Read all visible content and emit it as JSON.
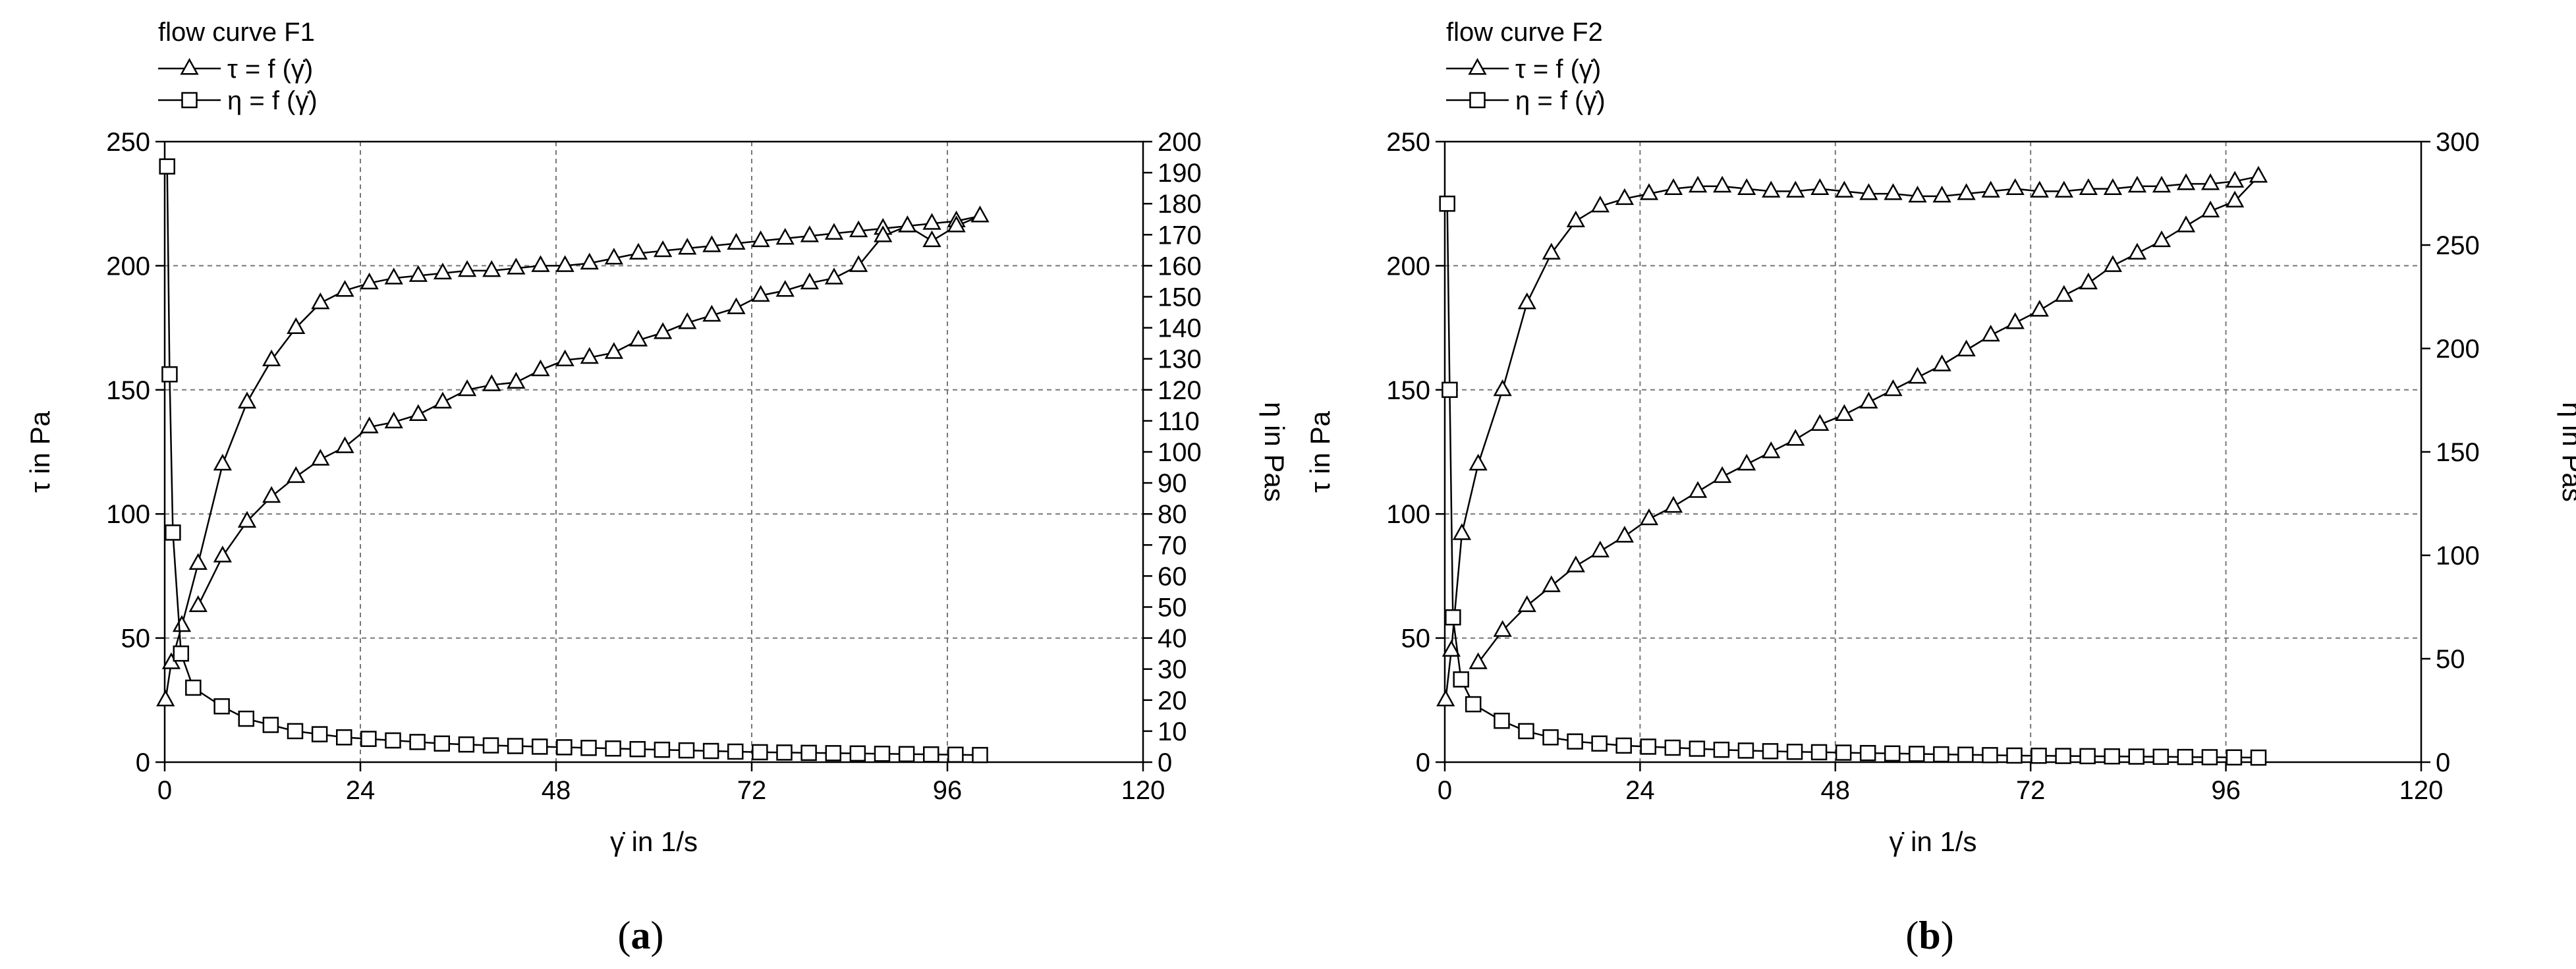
{
  "chart_data": [
    {
      "type": "line",
      "panel_label": "a",
      "title": "flow curve F1",
      "legend": [
        "τ = f (γ̇)",
        "η = f (γ̇)"
      ],
      "xlabel": "γ̇ in 1/s",
      "ylabel_left": "τ in Pa",
      "ylabel_right": "η in Pas",
      "xlim": [
        0,
        120
      ],
      "xticks": [
        0,
        24,
        48,
        72,
        96,
        120
      ],
      "ylim_left": [
        0,
        250
      ],
      "yticks_left": [
        0,
        50,
        100,
        150,
        200,
        250
      ],
      "ylim_right": [
        0,
        200
      ],
      "yticks_right": [
        0,
        10,
        20,
        30,
        40,
        50,
        60,
        70,
        80,
        90,
        100,
        110,
        120,
        130,
        140,
        150,
        160,
        170,
        180,
        190,
        200
      ],
      "grid": true,
      "series": [
        {
          "name": "τ = f (γ̇)",
          "marker": "triangle",
          "axis": "left",
          "x": [
            0.1,
            0.8,
            2.1,
            4.1,
            7.1,
            10.1,
            13.1,
            16.1,
            19.1,
            22.1,
            25.1,
            28.1,
            31.1,
            34.1,
            37.1,
            40.1,
            43.1,
            46.1,
            49.1,
            52.1,
            55.1,
            58.1,
            61.1,
            64.1,
            67.1,
            70.1,
            73.1,
            76.1,
            79.1,
            82.1,
            85.1,
            88.1,
            91.1,
            94.1,
            97.1,
            100,
            97.1,
            94.1,
            91.1,
            88.1,
            85.1,
            82.1,
            79.1,
            76.1,
            73.1,
            70.1,
            67.1,
            64.1,
            61.1,
            58.1,
            55.1,
            52.1,
            49.1,
            46.1,
            43.1,
            40.1,
            37.1,
            34.1,
            31.1,
            28.1,
            25.1,
            22.1,
            19.1,
            16.1,
            13.1,
            10.1,
            7.1,
            4.1
          ],
          "y": [
            25,
            40,
            55,
            80,
            120,
            145,
            162,
            175,
            185,
            190,
            193,
            195,
            196,
            197,
            198,
            198,
            199,
            200,
            200,
            201,
            203,
            205,
            206,
            207,
            208,
            209,
            210,
            211,
            212,
            213,
            214,
            215,
            216,
            217,
            218,
            220,
            216,
            210,
            216,
            212,
            200,
            195,
            193,
            190,
            188,
            183,
            180,
            177,
            173,
            170,
            165,
            163,
            162,
            158,
            153,
            152,
            150,
            145,
            140,
            137,
            135,
            127,
            122,
            115,
            107,
            97,
            83,
            63
          ]
        },
        {
          "name": "η = f (γ̇)",
          "marker": "square",
          "axis": "right",
          "x": [
            0.3,
            0.6,
            1.0,
            2.0,
            3.5,
            7.0,
            10.0,
            13.0,
            16.0,
            19.0,
            22.0,
            25.0,
            28.0,
            31.0,
            34.0,
            37.0,
            40.0,
            43.0,
            46.0,
            49.0,
            52.0,
            55.0,
            58.0,
            61.0,
            64.0,
            67.0,
            70.0,
            73.0,
            76.0,
            79.0,
            82.0,
            85.0,
            88.0,
            91.0,
            94.0,
            97.0,
            100.0
          ],
          "y": [
            192,
            125,
            74,
            35,
            24,
            18,
            14,
            12,
            10,
            9,
            8,
            7.5,
            7,
            6.5,
            6,
            5.7,
            5.4,
            5.2,
            5,
            4.8,
            4.6,
            4.4,
            4.2,
            4,
            3.8,
            3.6,
            3.4,
            3.2,
            3.1,
            3,
            2.9,
            2.8,
            2.7,
            2.6,
            2.5,
            2.4,
            2.3
          ]
        }
      ]
    },
    {
      "type": "line",
      "panel_label": "b",
      "title": "flow curve F2",
      "legend": [
        "τ = f (γ̇)",
        "η = f (γ̇)"
      ],
      "xlabel": "γ̇ in 1/s",
      "ylabel_left": "τ in Pa",
      "ylabel_right": "η in Pas",
      "xlim": [
        0,
        120
      ],
      "xticks": [
        0,
        24,
        48,
        72,
        96,
        120
      ],
      "ylim_left": [
        0,
        250
      ],
      "yticks_left": [
        0,
        50,
        100,
        150,
        200,
        250
      ],
      "ylim_right": [
        0,
        300
      ],
      "yticks_right": [
        0,
        50,
        100,
        150,
        200,
        250,
        300
      ],
      "grid": true,
      "series": [
        {
          "name": "τ = f (γ̇)",
          "marker": "triangle",
          "axis": "left",
          "x": [
            0.1,
            0.8,
            2.1,
            4.1,
            7.1,
            10.1,
            13.1,
            16.1,
            19.1,
            22.1,
            25.1,
            28.1,
            31.1,
            34.1,
            37.1,
            40.1,
            43.1,
            46.1,
            49.1,
            52.1,
            55.1,
            58.1,
            61.1,
            64.1,
            67.1,
            70.1,
            73.1,
            76.1,
            79.1,
            82.1,
            85.1,
            88.1,
            91.1,
            94.1,
            97.1,
            100,
            97.1,
            94.1,
            91.1,
            88.1,
            85.1,
            82.1,
            79.1,
            76.1,
            73.1,
            70.1,
            67.1,
            64.1,
            61.1,
            58.1,
            55.1,
            52.1,
            49.1,
            46.1,
            43.1,
            40.1,
            37.1,
            34.1,
            31.1,
            28.1,
            25.1,
            22.1,
            19.1,
            16.1,
            13.1,
            10.1,
            7.1,
            4.1
          ],
          "y": [
            25,
            45,
            92,
            120,
            150,
            185,
            205,
            218,
            224,
            227,
            229,
            231,
            232,
            232,
            231,
            230,
            230,
            231,
            230,
            229,
            229,
            228,
            228,
            229,
            230,
            231,
            230,
            230,
            231,
            231,
            232,
            232,
            233,
            233,
            234,
            236,
            226,
            222,
            216,
            210,
            205,
            200,
            193,
            188,
            182,
            177,
            172,
            166,
            160,
            155,
            150,
            145,
            140,
            136,
            130,
            125,
            120,
            115,
            109,
            103,
            98,
            91,
            85,
            79,
            71,
            63,
            53,
            40
          ]
        },
        {
          "name": "η = f (γ̇)",
          "marker": "square",
          "axis": "right",
          "x": [
            0.3,
            0.6,
            1.0,
            2.0,
            3.5,
            7.0,
            10.0,
            13.0,
            16.0,
            19.0,
            22.0,
            25.0,
            28.0,
            31.0,
            34.0,
            37.0,
            40.0,
            43.0,
            46.0,
            49.0,
            52.0,
            55.0,
            58.0,
            61.0,
            64.0,
            67.0,
            70.0,
            73.0,
            76.0,
            79.0,
            82.0,
            85.0,
            88.0,
            91.0,
            94.0,
            97.0,
            100.0
          ],
          "y": [
            270,
            180,
            70,
            40,
            28,
            20,
            15,
            12,
            10,
            9,
            8,
            7.5,
            7,
            6.5,
            6,
            5.6,
            5.3,
            5,
            4.8,
            4.6,
            4.4,
            4.2,
            4,
            3.8,
            3.6,
            3.4,
            3.2,
            3.1,
            3,
            2.9,
            2.8,
            2.7,
            2.6,
            2.5,
            2.4,
            2.3,
            2.2
          ]
        }
      ]
    }
  ]
}
